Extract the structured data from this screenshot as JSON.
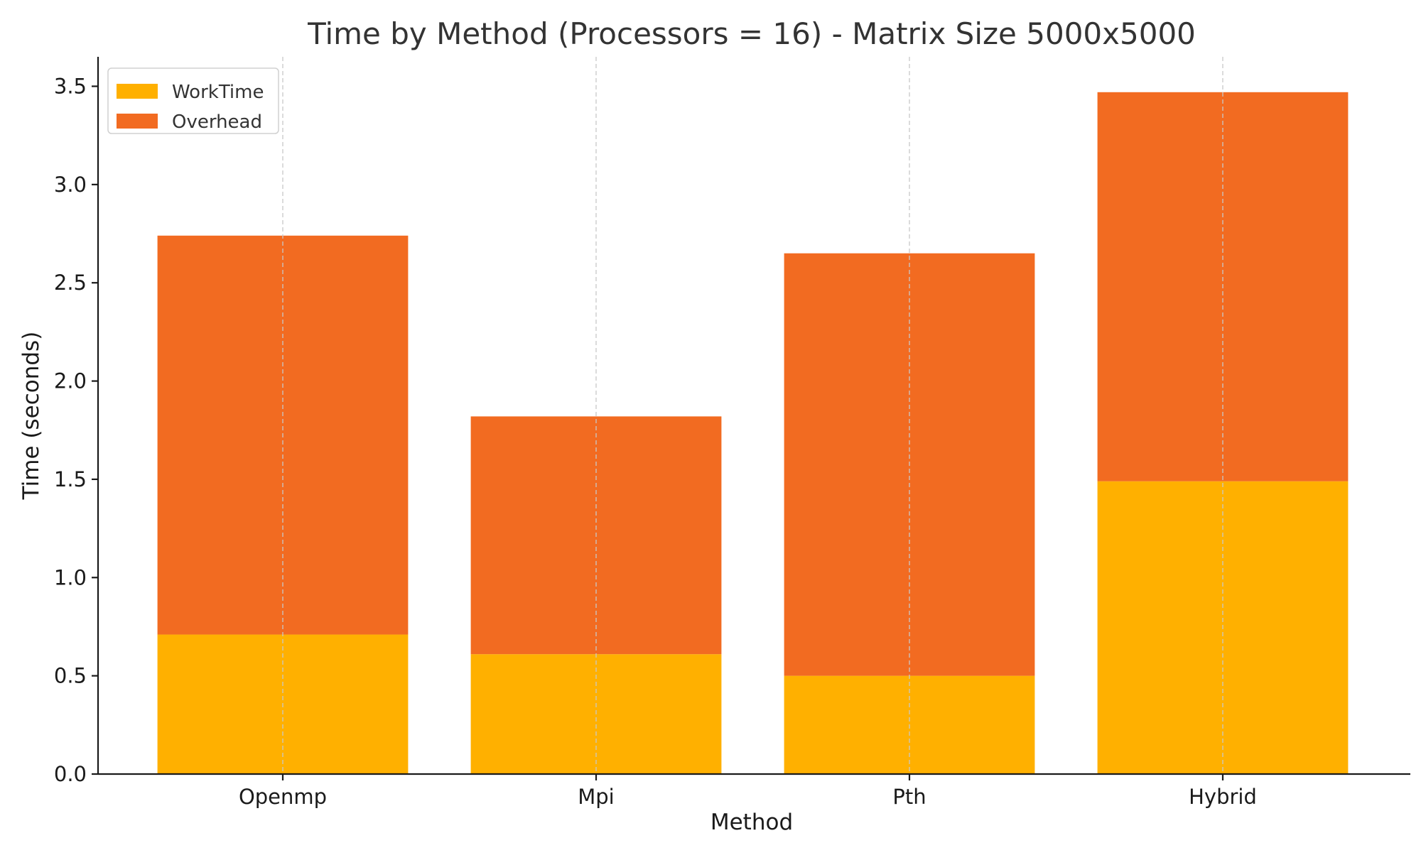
{
  "chart_data": {
    "type": "bar",
    "stacked": true,
    "title": "Time by Method (Processors = 16) - Matrix Size 5000x5000",
    "xlabel": "Method",
    "ylabel": "Time (seconds)",
    "categories": [
      "Openmp",
      "Mpi",
      "Pth",
      "Hybrid"
    ],
    "series": [
      {
        "name": "WorkTime",
        "values": [
          0.71,
          0.61,
          0.5,
          1.49
        ],
        "color": "#FFB000"
      },
      {
        "name": "Overhead",
        "values": [
          2.03,
          1.21,
          2.15,
          1.98
        ],
        "color": "#F26B21"
      }
    ],
    "ylim": [
      0,
      3.65
    ],
    "yticks": [
      "0.0",
      "0.5",
      "1.0",
      "1.5",
      "2.0",
      "2.5",
      "3.0",
      "3.5"
    ],
    "grid": "x-dashed",
    "legend_position": "top-left"
  }
}
